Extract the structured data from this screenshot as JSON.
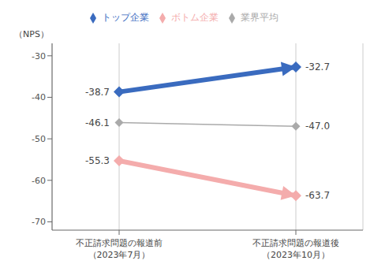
{
  "chart_data": {
    "type": "line",
    "categories": [
      "不正請求問題の報道前\n（2023年7月）",
      "不正請求問題の報道後\n（2023年10月）"
    ],
    "series": [
      {
        "name": "トップ企業",
        "color": "#3A6BBF",
        "values": [
          -38.7,
          -32.7
        ],
        "line_style": "arrow"
      },
      {
        "name": "業界平均",
        "color": "#AAAAAA",
        "values": [
          -46.1,
          -47.0
        ],
        "value_labels": [
          "-46.1",
          "-47.0"
        ],
        "line_style": "solid"
      },
      {
        "name": "ボトム企業",
        "color": "#F4ACAC",
        "values": [
          -55.3,
          -63.7
        ],
        "line_style": "arrow"
      }
    ],
    "ylabel": "（NPS）",
    "ylim": [
      -72,
      -27
    ],
    "yticks": [
      -70,
      -60,
      -50,
      -40,
      -30
    ],
    "data_labels": true,
    "legend": "top",
    "grid": "x",
    "marker": "diamond"
  }
}
